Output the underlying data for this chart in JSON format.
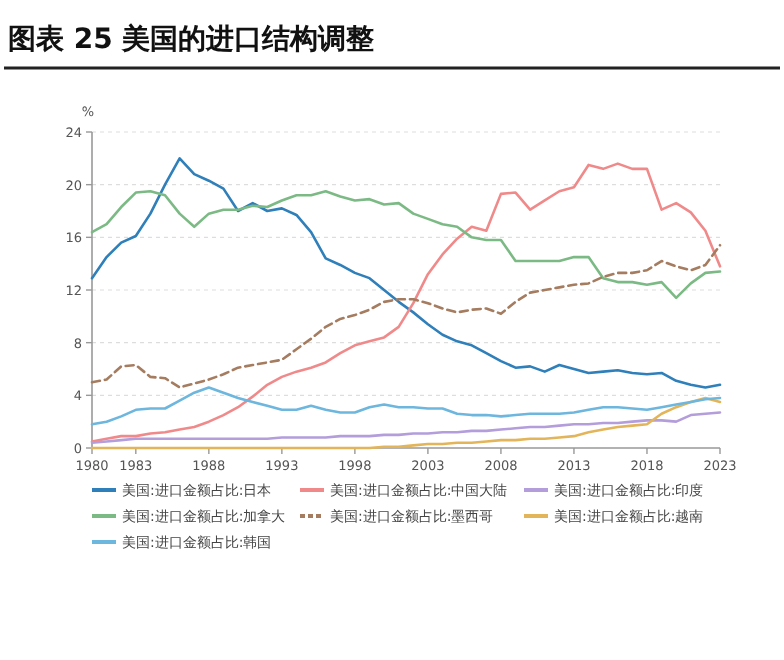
{
  "chart_data": {
    "type": "line",
    "title": "图表 25 美国的进口结构调整",
    "ylabel": "%",
    "x": [
      1980,
      1981,
      1982,
      1983,
      1984,
      1985,
      1986,
      1987,
      1988,
      1989,
      1990,
      1991,
      1992,
      1993,
      1994,
      1995,
      1996,
      1997,
      1998,
      1999,
      2000,
      2001,
      2002,
      2003,
      2004,
      2005,
      2006,
      2007,
      2008,
      2009,
      2010,
      2011,
      2012,
      2013,
      2014,
      2015,
      2016,
      2017,
      2018,
      2019,
      2020,
      2021,
      2022,
      2023
    ],
    "xlim": [
      1980,
      2023
    ],
    "xticks": [
      1980,
      1983,
      1988,
      1993,
      1998,
      2003,
      2008,
      2013,
      2018,
      2023
    ],
    "ylim": [
      0,
      24
    ],
    "yticks": [
      0,
      4,
      8,
      12,
      16,
      20,
      24
    ],
    "grid": "y",
    "legend": "bottom",
    "series": [
      {
        "name": "美国:进口金额占比:日本",
        "color": "#2f7fba",
        "values": [
          12.9,
          14.5,
          15.6,
          16.1,
          17.8,
          20.0,
          22.0,
          20.8,
          20.3,
          19.7,
          18.0,
          18.6,
          18.0,
          18.2,
          17.7,
          16.4,
          14.4,
          13.9,
          13.3,
          12.9,
          12.0,
          11.1,
          10.3,
          9.4,
          8.6,
          8.1,
          7.8,
          7.2,
          6.6,
          6.1,
          6.2,
          5.8,
          6.3,
          6.0,
          5.7,
          5.8,
          5.9,
          5.7,
          5.6,
          5.7,
          5.1,
          4.8,
          4.6,
          4.8
        ]
      },
      {
        "name": "美国:进口金额占比:中国大陆",
        "color": "#f08a8a",
        "values": [
          0.5,
          0.7,
          0.9,
          0.9,
          1.1,
          1.2,
          1.4,
          1.6,
          2.0,
          2.5,
          3.1,
          3.9,
          4.8,
          5.4,
          5.8,
          6.1,
          6.5,
          7.2,
          7.8,
          8.1,
          8.4,
          9.2,
          11.0,
          13.2,
          14.7,
          15.9,
          16.8,
          16.5,
          19.3,
          19.4,
          18.1,
          18.8,
          19.5,
          19.8,
          21.5,
          21.2,
          21.6,
          21.2,
          21.2,
          18.1,
          18.6,
          17.9,
          16.5,
          13.8
        ]
      },
      {
        "name": "美国:进口金额占比:印度",
        "color": "#b39ddb",
        "values": [
          0.4,
          0.5,
          0.6,
          0.7,
          0.7,
          0.7,
          0.7,
          0.7,
          0.7,
          0.7,
          0.7,
          0.7,
          0.7,
          0.8,
          0.8,
          0.8,
          0.8,
          0.9,
          0.9,
          0.9,
          1.0,
          1.0,
          1.1,
          1.1,
          1.2,
          1.2,
          1.3,
          1.3,
          1.4,
          1.5,
          1.6,
          1.6,
          1.7,
          1.8,
          1.8,
          1.9,
          1.9,
          2.0,
          2.1,
          2.1,
          2.0,
          2.5,
          2.6,
          2.7
        ]
      },
      {
        "name": "美国:进口金额占比:加拿大",
        "color": "#7cba85",
        "values": [
          16.4,
          17.0,
          18.3,
          19.4,
          19.5,
          19.2,
          17.8,
          16.8,
          17.8,
          18.1,
          18.1,
          18.4,
          18.3,
          18.8,
          19.2,
          19.2,
          19.5,
          19.1,
          18.8,
          18.9,
          18.5,
          18.6,
          17.8,
          17.4,
          17.0,
          16.8,
          16.0,
          15.8,
          15.8,
          14.2,
          14.2,
          14.2,
          14.2,
          14.5,
          14.5,
          12.9,
          12.6,
          12.6,
          12.4,
          12.6,
          11.4,
          12.5,
          13.3,
          13.4
        ]
      },
      {
        "name": "美国:进口金额占比:墨西哥",
        "color": "#a57c5f",
        "line_style": "dashed",
        "values": [
          5.0,
          5.2,
          6.2,
          6.3,
          5.4,
          5.3,
          4.6,
          4.9,
          5.2,
          5.6,
          6.1,
          6.3,
          6.5,
          6.7,
          7.5,
          8.3,
          9.2,
          9.8,
          10.1,
          10.5,
          11.1,
          11.3,
          11.3,
          11.0,
          10.6,
          10.3,
          10.5,
          10.6,
          10.2,
          11.1,
          11.8,
          12.0,
          12.2,
          12.4,
          12.5,
          13.0,
          13.3,
          13.3,
          13.5,
          14.2,
          13.8,
          13.5,
          13.9,
          15.4
        ]
      },
      {
        "name": "美国:进口金额占比:越南",
        "color": "#e3b55a",
        "values": [
          0,
          0,
          0,
          0,
          0,
          0,
          0,
          0,
          0,
          0,
          0,
          0,
          0,
          0,
          0,
          0,
          0,
          0,
          0,
          0,
          0.1,
          0.1,
          0.2,
          0.3,
          0.3,
          0.4,
          0.4,
          0.5,
          0.6,
          0.6,
          0.7,
          0.7,
          0.8,
          0.9,
          1.2,
          1.4,
          1.6,
          1.7,
          1.8,
          2.6,
          3.1,
          3.5,
          3.8,
          3.5
        ]
      },
      {
        "name": "美国:进口金额占比:韩国",
        "color": "#6db6de",
        "values": [
          1.8,
          2.0,
          2.4,
          2.9,
          3.0,
          3.0,
          3.6,
          4.2,
          4.6,
          4.2,
          3.8,
          3.5,
          3.2,
          2.9,
          2.9,
          3.2,
          2.9,
          2.7,
          2.7,
          3.1,
          3.3,
          3.1,
          3.1,
          3.0,
          3.0,
          2.6,
          2.5,
          2.5,
          2.4,
          2.5,
          2.6,
          2.6,
          2.6,
          2.7,
          2.9,
          3.1,
          3.1,
          3.0,
          2.9,
          3.1,
          3.3,
          3.5,
          3.7,
          3.8
        ]
      }
    ]
  }
}
